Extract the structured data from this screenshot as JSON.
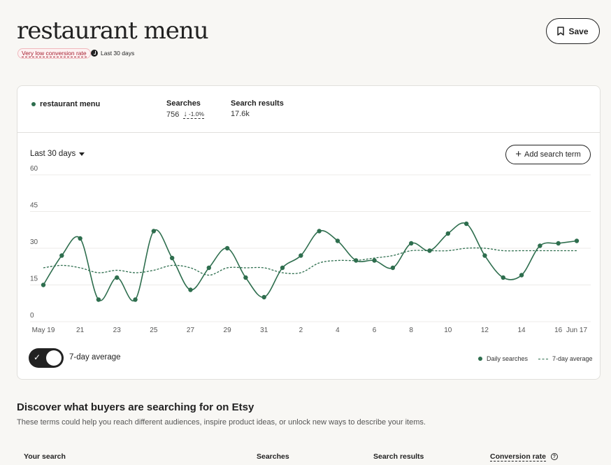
{
  "header": {
    "title": "restaurant menu",
    "badge": "Very low conversion rate",
    "period": "Last 30 days",
    "save_label": "Save"
  },
  "card": {
    "term": "restaurant menu",
    "searches_label": "Searches",
    "searches_value": "756",
    "searches_change": "-1.0%",
    "results_label": "Search results",
    "results_value": "17.6k",
    "range_label": "Last 30 days",
    "add_label": "Add search term",
    "toggle_label": "7-day average",
    "legend_daily": "Daily searches",
    "legend_avg": "7-day average"
  },
  "chart_data": {
    "type": "line",
    "x": [
      "May 19",
      "May 20",
      "May 21",
      "May 22",
      "May 23",
      "May 24",
      "May 25",
      "May 26",
      "May 27",
      "May 28",
      "May 29",
      "May 30",
      "May 31",
      "Jun 1",
      "Jun 2",
      "Jun 3",
      "Jun 4",
      "Jun 5",
      "Jun 6",
      "Jun 7",
      "Jun 8",
      "Jun 9",
      "Jun 10",
      "Jun 11",
      "Jun 12",
      "Jun 13",
      "Jun 14",
      "Jun 15",
      "Jun 16",
      "Jun 17"
    ],
    "x_tick_labels": [
      "May 19",
      "21",
      "23",
      "25",
      "27",
      "29",
      "31",
      "2",
      "4",
      "6",
      "8",
      "10",
      "12",
      "14",
      "16",
      "Jun 17"
    ],
    "series": [
      {
        "name": "Daily searches",
        "values": [
          15,
          27,
          34,
          9,
          18,
          9,
          37,
          26,
          13,
          22,
          30,
          18,
          10,
          22,
          27,
          37,
          33,
          25,
          25,
          22,
          32,
          29,
          36,
          40,
          27,
          18,
          19,
          31,
          32,
          33
        ]
      },
      {
        "name": "7-day average",
        "values": [
          22,
          23,
          22,
          20,
          21,
          20,
          21,
          23,
          22,
          19,
          22,
          22,
          22,
          20,
          20,
          24,
          25,
          25,
          26,
          27,
          29,
          29,
          29,
          30,
          30,
          29,
          29,
          29,
          29,
          29
        ]
      }
    ],
    "ylim": [
      0,
      60
    ],
    "y_ticks": [
      0,
      15,
      30,
      45,
      60
    ],
    "grid": true,
    "legend": "bottom-right",
    "color": "#2e6e4e"
  },
  "discover": {
    "title": "Discover what buyers are searching for on Etsy",
    "subtitle": "These terms could help you reach different audiences, inspire product ideas, or unlock new ways to describe your items.",
    "columns": [
      "Your search",
      "Searches",
      "Search results",
      "Conversion rate"
    ]
  },
  "colors": {
    "accent": "#2e6e4e",
    "badge_text": "#a61d2f"
  }
}
